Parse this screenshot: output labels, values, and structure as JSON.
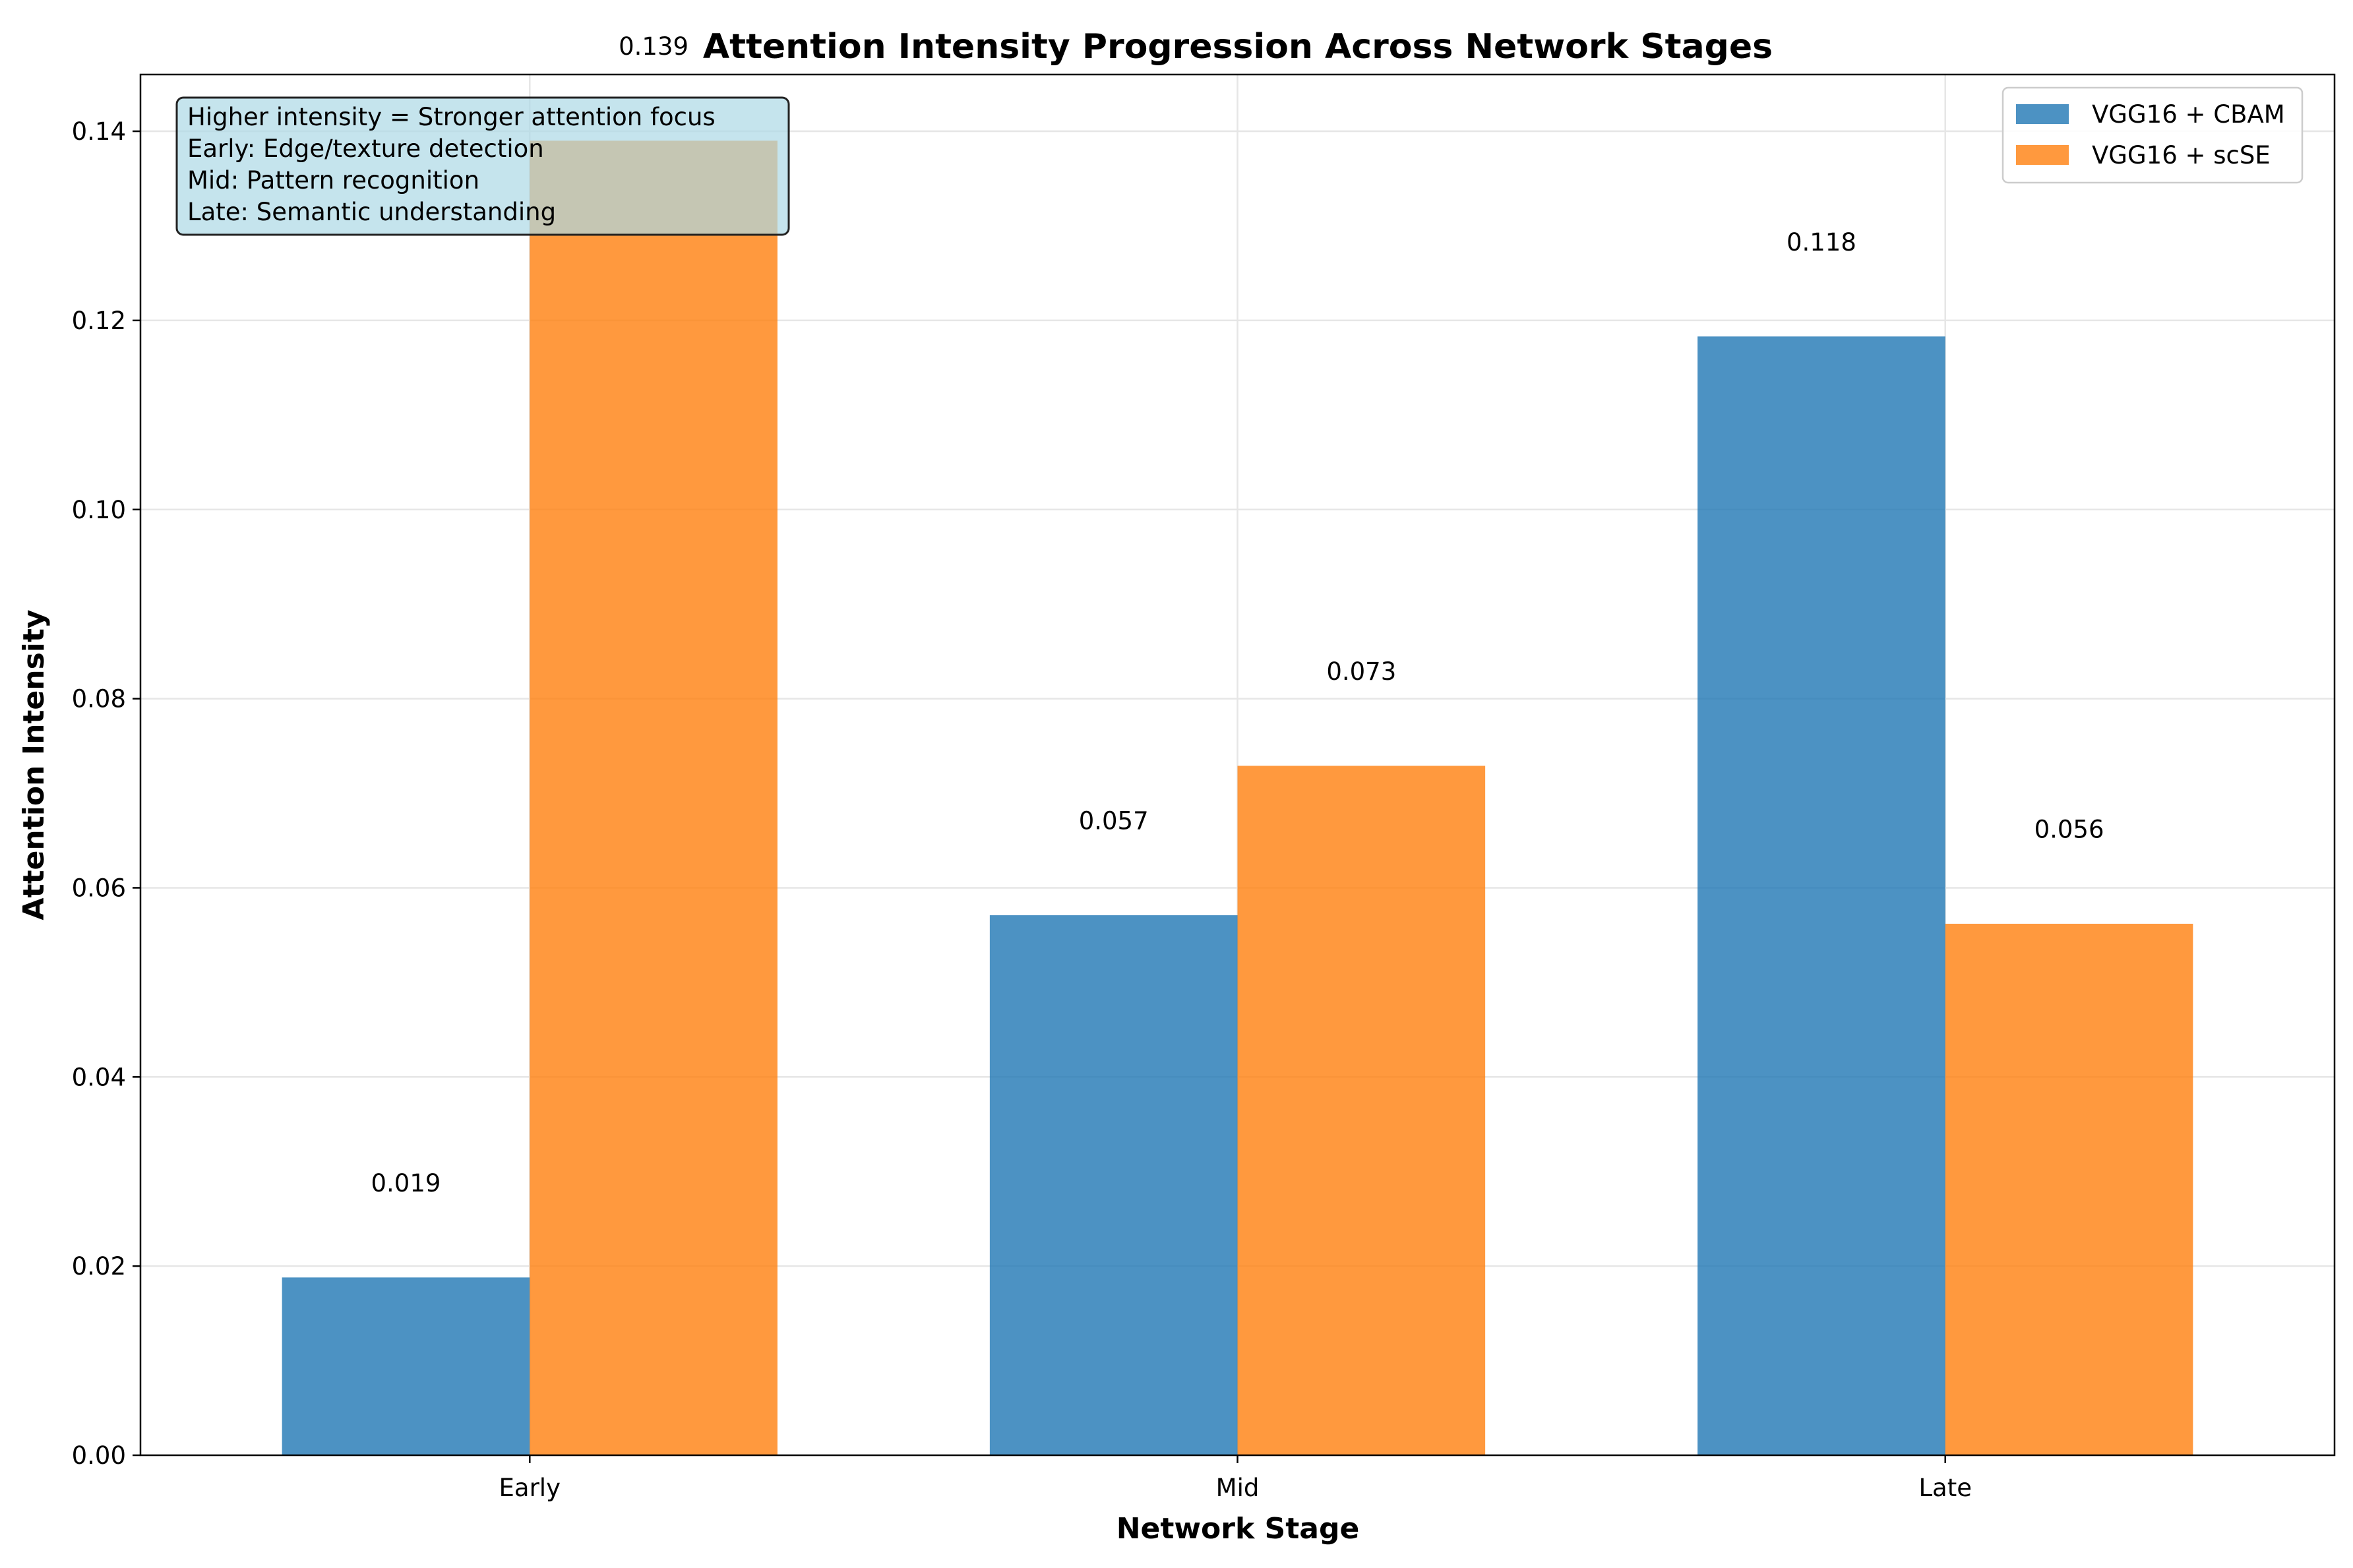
{
  "chart_data": {
    "type": "bar",
    "title": "Attention Intensity Progression Across Network Stages",
    "xlabel": "Network Stage",
    "ylabel": "Attention Intensity",
    "categories": [
      "Early",
      "Mid",
      "Late"
    ],
    "series": [
      {
        "name": "VGG16 + CBAM",
        "color": "#1f77b4",
        "values": [
          0.0188,
          0.0571,
          0.1183
        ],
        "labels": [
          "0.019",
          "0.057",
          "0.118"
        ]
      },
      {
        "name": "VGG16 + scSE",
        "color": "#ff7f0e",
        "values": [
          0.139,
          0.0729,
          0.0562
        ],
        "labels": [
          "0.139",
          "0.073",
          "0.056"
        ]
      }
    ],
    "ylim": [
      0,
      0.146
    ],
    "yticks": [
      0.0,
      0.02,
      0.04,
      0.06,
      0.08,
      0.1,
      0.12,
      0.14
    ],
    "ytick_labels": [
      "0.00",
      "0.02",
      "0.04",
      "0.06",
      "0.08",
      "0.10",
      "0.12",
      "0.14"
    ],
    "grid": true,
    "legend_position": "top-right",
    "annotation": {
      "lines": [
        "Higher intensity = Stronger attention focus",
        "Early: Edge/texture detection",
        "Mid: Pattern recognition",
        "Late: Semantic understanding"
      ],
      "position": "top-left",
      "background": "#add8e6"
    }
  }
}
